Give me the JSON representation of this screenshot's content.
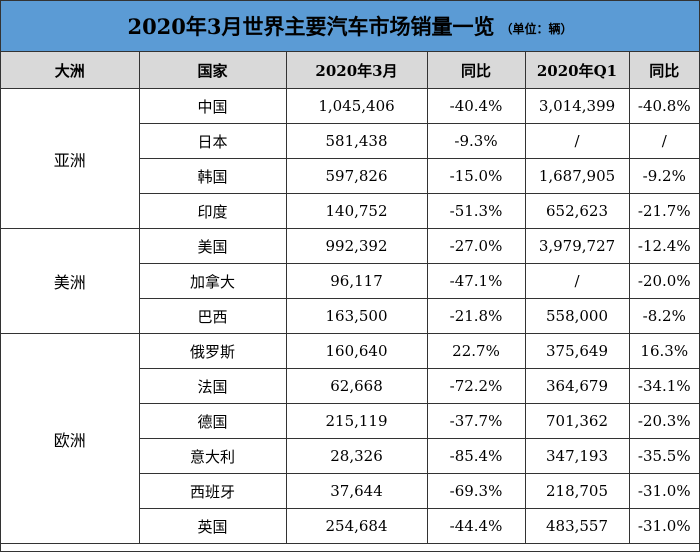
{
  "title": "2020年3月世界主要汽车市场销量一览",
  "unit": "（单位：辆）",
  "headers": [
    "大洲",
    "国家",
    "2020年3月",
    "同比",
    "2020年Q1",
    "同比"
  ],
  "groups": [
    {
      "region": "亚洲",
      "rows": [
        {
          "country": "中国",
          "march": "1,045,406",
          "march_yoy": "-40.4%",
          "q1": "3,014,399",
          "q1_yoy": "-40.8%"
        },
        {
          "country": "日本",
          "march": "581,438",
          "march_yoy": "-9.3%",
          "q1": "/",
          "q1_yoy": "/"
        },
        {
          "country": "韩国",
          "march": "597,826",
          "march_yoy": "-15.0%",
          "q1": "1,687,905",
          "q1_yoy": "-9.2%"
        },
        {
          "country": "印度",
          "march": "140,752",
          "march_yoy": "-51.3%",
          "q1": "652,623",
          "q1_yoy": "-21.7%"
        }
      ]
    },
    {
      "region": "美洲",
      "rows": [
        {
          "country": "美国",
          "march": "992,392",
          "march_yoy": "-27.0%",
          "q1": "3,979,727",
          "q1_yoy": "-12.4%"
        },
        {
          "country": "加拿大",
          "march": "96,117",
          "march_yoy": "-47.1%",
          "q1": "/",
          "q1_yoy": "-20.0%"
        },
        {
          "country": "巴西",
          "march": "163,500",
          "march_yoy": "-21.8%",
          "q1": "558,000",
          "q1_yoy": "-8.2%"
        }
      ]
    },
    {
      "region": "欧洲",
      "rows": [
        {
          "country": "俄罗斯",
          "march": "160,640",
          "march_yoy": "22.7%",
          "q1": "375,649",
          "q1_yoy": "16.3%"
        },
        {
          "country": "法国",
          "march": "62,668",
          "march_yoy": "-72.2%",
          "q1": "364,679",
          "q1_yoy": "-34.1%"
        },
        {
          "country": "德国",
          "march": "215,119",
          "march_yoy": "-37.7%",
          "q1": "701,362",
          "q1_yoy": "-20.3%"
        },
        {
          "country": "意大利",
          "march": "28,326",
          "march_yoy": "-85.4%",
          "q1": "347,193",
          "q1_yoy": "-35.5%"
        },
        {
          "country": "西班牙",
          "march": "37,644",
          "march_yoy": "-69.3%",
          "q1": "218,705",
          "q1_yoy": "-31.0%"
        },
        {
          "country": "英国",
          "march": "254,684",
          "march_yoy": "-44.4%",
          "q1": "483,557",
          "q1_yoy": "-31.0%"
        }
      ]
    }
  ],
  "colors": {
    "title_bg": "#5b9bd5",
    "header_bg": "#d9d9d9",
    "border": "#333333"
  }
}
